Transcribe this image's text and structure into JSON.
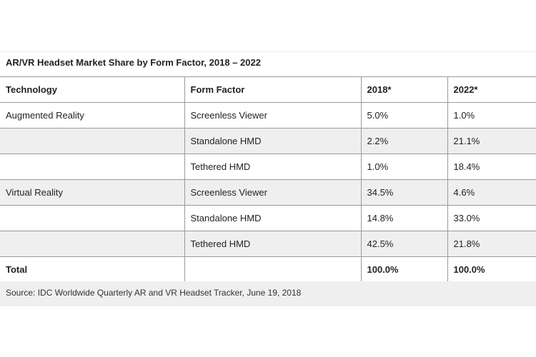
{
  "title": "AR/VR Headset Market Share by Form Factor, 2018 – 2022",
  "headers": [
    "Technology",
    "Form Factor",
    "2018*",
    "2022*"
  ],
  "rows": [
    {
      "technology": "Augmented Reality",
      "form_factor": "Screenless Viewer",
      "y2018": "5.0%",
      "y2022": "1.0%"
    },
    {
      "technology": "",
      "form_factor": "Standalone HMD",
      "y2018": "2.2%",
      "y2022": "21.1%"
    },
    {
      "technology": "",
      "form_factor": "Tethered HMD",
      "y2018": "1.0%",
      "y2022": "18.4%"
    },
    {
      "technology": "Virtual Reality",
      "form_factor": "Screenless Viewer",
      "y2018": "34.5%",
      "y2022": "4.6%"
    },
    {
      "technology": "",
      "form_factor": "Standalone HMD",
      "y2018": "14.8%",
      "y2022": "33.0%"
    },
    {
      "technology": "",
      "form_factor": "Tethered HMD",
      "y2018": "42.5%",
      "y2022": "21.8%"
    }
  ],
  "total": {
    "label": "Total",
    "form_factor": "",
    "y2018": "100.0%",
    "y2022": "100.0%"
  },
  "source": "Source: IDC Worldwide Quarterly AR and VR Headset Tracker, June 19, 2018"
}
